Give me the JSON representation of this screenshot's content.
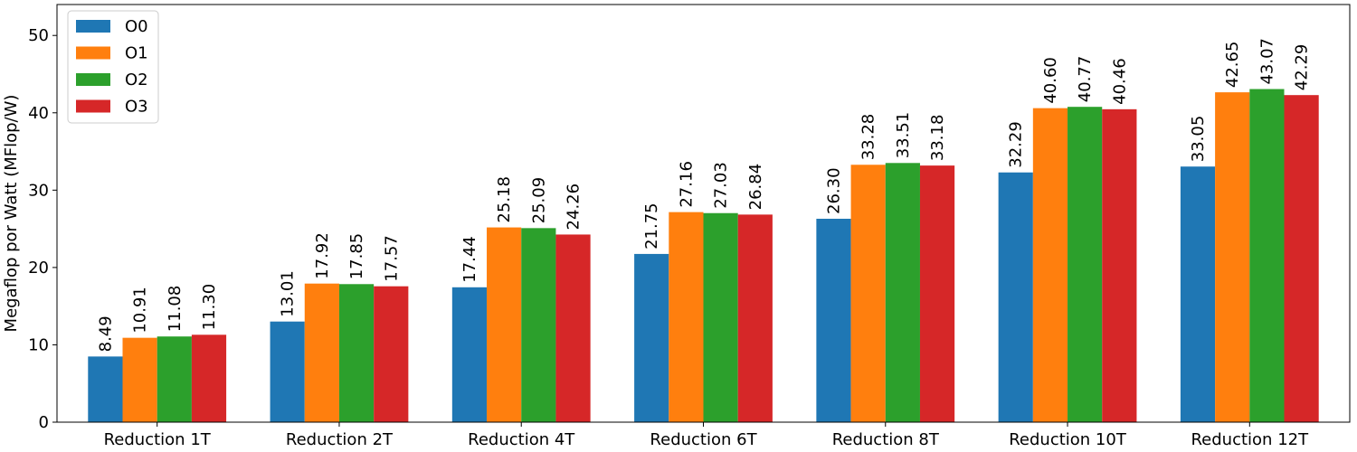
{
  "chart_data": {
    "type": "bar",
    "title": "",
    "xlabel": "",
    "ylabel": "Megaflop por Watt (MFlop/W)",
    "ylim": [
      0,
      54
    ],
    "yticks": [
      0,
      10,
      20,
      30,
      40,
      50
    ],
    "grid": false,
    "legend_position": "top-left",
    "categories": [
      "Reduction 1T",
      "Reduction 2T",
      "Reduction 4T",
      "Reduction 6T",
      "Reduction 8T",
      "Reduction 10T",
      "Reduction 12T"
    ],
    "series": [
      {
        "name": "O0",
        "color": "#1f77b4",
        "values": [
          8.49,
          13.01,
          17.44,
          21.75,
          26.3,
          32.29,
          33.05
        ],
        "labels": [
          "8.49",
          "13.01",
          "17.44",
          "21.75",
          "26.30",
          "32.29",
          "33.05"
        ]
      },
      {
        "name": "O1",
        "color": "#ff7f0e",
        "values": [
          10.91,
          17.92,
          25.18,
          27.16,
          33.28,
          40.6,
          42.65
        ],
        "labels": [
          "10.91",
          "17.92",
          "25.18",
          "27.16",
          "33.28",
          "40.60",
          "42.65"
        ]
      },
      {
        "name": "O2",
        "color": "#2ca02c",
        "values": [
          11.08,
          17.85,
          25.09,
          27.03,
          33.51,
          40.77,
          43.07
        ],
        "labels": [
          "11.08",
          "17.85",
          "25.09",
          "27.03",
          "33.51",
          "40.77",
          "43.07"
        ]
      },
      {
        "name": "O3",
        "color": "#d62728",
        "values": [
          11.3,
          17.57,
          24.26,
          26.84,
          33.18,
          40.46,
          42.29
        ],
        "labels": [
          "11.30",
          "17.57",
          "24.26",
          "26.84",
          "33.18",
          "40.46",
          "42.29"
        ]
      }
    ]
  }
}
